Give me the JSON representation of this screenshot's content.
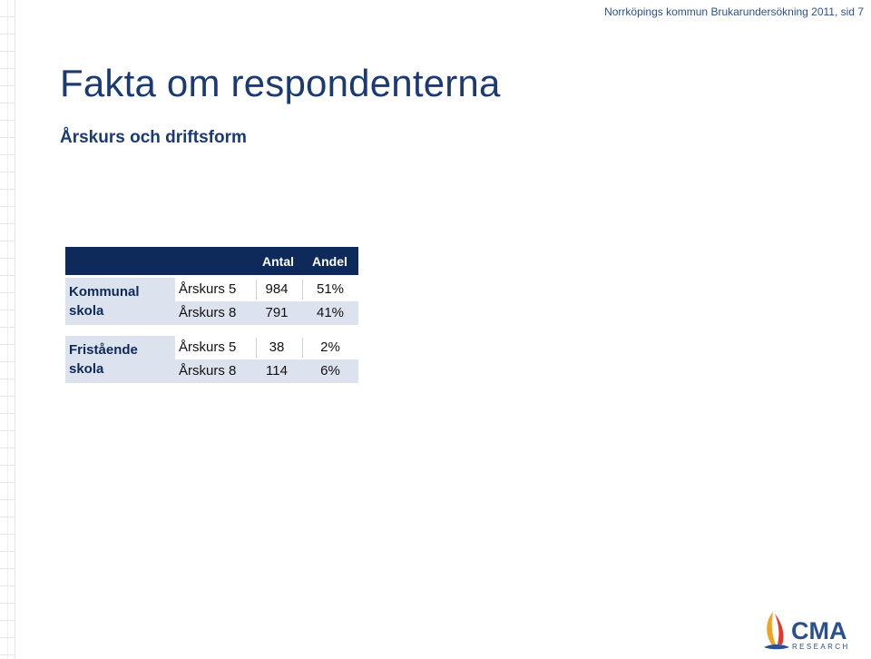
{
  "header": {
    "text": "Norrköpings kommun Brukarundersökning 2011,  sid 7"
  },
  "page": {
    "title": "Fakta om respondenterna",
    "subtitle": "Årskurs och driftsform"
  },
  "table": {
    "columns": [
      "Antal",
      "Andel"
    ],
    "groups": [
      {
        "label_line1": "Kommunal",
        "label_line2": "skola",
        "rows": [
          {
            "name": "Årskurs 5",
            "antal": "984",
            "andel": "51%"
          },
          {
            "name": "Årskurs 8",
            "antal": "791",
            "andel": "41%"
          }
        ]
      },
      {
        "label_line1": "Fristående",
        "label_line2": "skola",
        "rows": [
          {
            "name": "Årskurs 5",
            "antal": "38",
            "andel": "2%"
          },
          {
            "name": "Årskurs 8",
            "antal": "114",
            "andel": "6%"
          }
        ]
      }
    ]
  },
  "logo": {
    "name": "CMA",
    "tagline": "RESEARCH",
    "color": "#2b4f8f",
    "sail_colors": [
      "#f0a31d",
      "#e2382b",
      "#2b4f8f"
    ]
  }
}
